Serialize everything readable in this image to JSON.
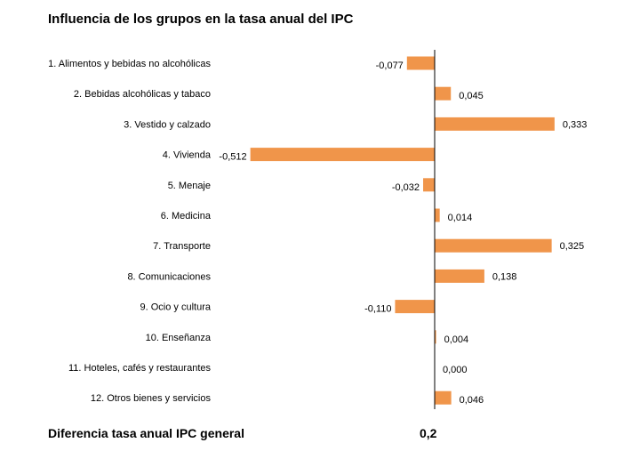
{
  "title": "Influencia de los grupos en la tasa anual del IPC",
  "footer": {
    "label": "Diferencia tasa anual IPC general",
    "value": "0,2"
  },
  "colors": {
    "bar": "#f0954a",
    "axis": "#000000"
  },
  "chart_data": {
    "type": "bar",
    "orientation": "horizontal",
    "categories": [
      "1. Alimentos y bebidas no alcohólicas",
      "2. Bebidas alcohólicas y tabaco",
      "3. Vestido y calzado",
      "4. Vivienda",
      "5. Menaje",
      "6. Medicina",
      "7. Transporte",
      "8. Comunicaciones",
      "9. Ocio y cultura",
      "10. Enseñanza",
      "11. Hoteles, cafés y restaurantes",
      "12. Otros bienes y servicios"
    ],
    "values": [
      -0.077,
      0.045,
      0.333,
      -0.512,
      -0.032,
      0.014,
      0.325,
      0.138,
      -0.11,
      0.004,
      0.0,
      0.046
    ],
    "value_labels": [
      "-0,077",
      "0,045",
      "0,333",
      "-0,512",
      "-0,032",
      "0,014",
      "0,325",
      "0,138",
      "-0,110",
      "0,004",
      "0,000",
      "0,046"
    ],
    "xlim": [
      -0.512,
      0.333
    ],
    "grid": false,
    "legend": "none"
  }
}
